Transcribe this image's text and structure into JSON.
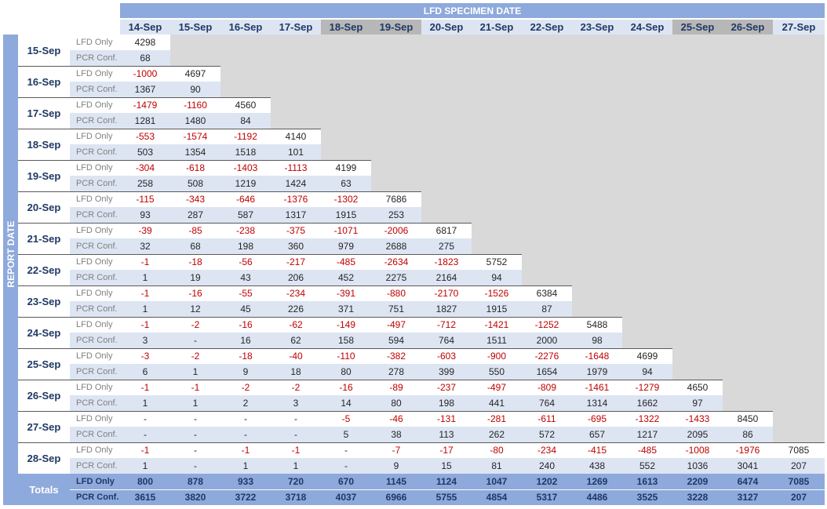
{
  "header": {
    "title": "LFD SPECIMEN DATE",
    "side_title": "REPORT DATE",
    "columns": [
      "14-Sep",
      "15-Sep",
      "16-Sep",
      "17-Sep",
      "18-Sep",
      "19-Sep",
      "20-Sep",
      "21-Sep",
      "22-Sep",
      "23-Sep",
      "24-Sep",
      "25-Sep",
      "26-Sep",
      "27-Sep"
    ],
    "shaded_columns": [
      4,
      5,
      11,
      12
    ]
  },
  "types": {
    "lfd": "LFD Only",
    "pcr": "PCR Conf."
  },
  "rows": [
    {
      "date": "15-Sep",
      "lfd": [
        "4298"
      ],
      "pcr": [
        "68"
      ]
    },
    {
      "date": "16-Sep",
      "lfd": [
        "-1000",
        "4697"
      ],
      "pcr": [
        "1367",
        "90"
      ]
    },
    {
      "date": "17-Sep",
      "lfd": [
        "-1479",
        "-1160",
        "4560"
      ],
      "pcr": [
        "1281",
        "1480",
        "84"
      ]
    },
    {
      "date": "18-Sep",
      "lfd": [
        "-553",
        "-1574",
        "-1192",
        "4140"
      ],
      "pcr": [
        "503",
        "1354",
        "1518",
        "101"
      ]
    },
    {
      "date": "19-Sep",
      "lfd": [
        "-304",
        "-618",
        "-1403",
        "-1113",
        "4199"
      ],
      "pcr": [
        "258",
        "508",
        "1219",
        "1424",
        "63"
      ]
    },
    {
      "date": "20-Sep",
      "lfd": [
        "-115",
        "-343",
        "-646",
        "-1376",
        "-1302",
        "7686"
      ],
      "pcr": [
        "93",
        "287",
        "587",
        "1317",
        "1915",
        "253"
      ]
    },
    {
      "date": "21-Sep",
      "lfd": [
        "-39",
        "-85",
        "-238",
        "-375",
        "-1071",
        "-2006",
        "6817"
      ],
      "pcr": [
        "32",
        "68",
        "198",
        "360",
        "979",
        "2688",
        "275"
      ]
    },
    {
      "date": "22-Sep",
      "lfd": [
        "-1",
        "-18",
        "-56",
        "-217",
        "-485",
        "-2634",
        "-1823",
        "5752"
      ],
      "pcr": [
        "1",
        "19",
        "43",
        "206",
        "452",
        "2275",
        "2164",
        "94"
      ]
    },
    {
      "date": "23-Sep",
      "lfd": [
        "-1",
        "-16",
        "-55",
        "-234",
        "-391",
        "-880",
        "-2170",
        "-1526",
        "6384"
      ],
      "pcr": [
        "1",
        "12",
        "45",
        "226",
        "371",
        "751",
        "1827",
        "1915",
        "87"
      ]
    },
    {
      "date": "24-Sep",
      "lfd": [
        "-1",
        "-2",
        "-16",
        "-62",
        "-149",
        "-497",
        "-712",
        "-1421",
        "-1252",
        "5488"
      ],
      "pcr": [
        "3",
        "-",
        "16",
        "62",
        "158",
        "594",
        "764",
        "1511",
        "2000",
        "98"
      ]
    },
    {
      "date": "25-Sep",
      "lfd": [
        "-3",
        "-2",
        "-18",
        "-40",
        "-110",
        "-382",
        "-603",
        "-900",
        "-2276",
        "-1648",
        "4699"
      ],
      "pcr": [
        "6",
        "1",
        "9",
        "18",
        "80",
        "278",
        "399",
        "550",
        "1654",
        "1979",
        "94"
      ]
    },
    {
      "date": "26-Sep",
      "lfd": [
        "-1",
        "-1",
        "-2",
        "-2",
        "-16",
        "-89",
        "-237",
        "-497",
        "-809",
        "-1461",
        "-1279",
        "4650"
      ],
      "pcr": [
        "1",
        "1",
        "2",
        "3",
        "14",
        "80",
        "198",
        "441",
        "764",
        "1314",
        "1662",
        "97"
      ]
    },
    {
      "date": "27-Sep",
      "lfd": [
        "-",
        "-",
        "-",
        "-",
        "-5",
        "-46",
        "-131",
        "-281",
        "-611",
        "-695",
        "-1322",
        "-1433",
        "8450"
      ],
      "pcr": [
        "-",
        "-",
        "-",
        "-",
        "5",
        "38",
        "113",
        "262",
        "572",
        "657",
        "1217",
        "2095",
        "86"
      ]
    },
    {
      "date": "28-Sep",
      "lfd": [
        "-1",
        "-",
        "-1",
        "-1",
        "-",
        "-7",
        "-17",
        "-80",
        "-234",
        "-415",
        "-485",
        "-1008",
        "-1976",
        "7085"
      ],
      "pcr": [
        "1",
        "-",
        "1",
        "1",
        "-",
        "9",
        "15",
        "81",
        "240",
        "438",
        "552",
        "1036",
        "3041",
        "207"
      ]
    }
  ],
  "totals": {
    "label": "Totals",
    "lfd": [
      "800",
      "878",
      "933",
      "720",
      "670",
      "1145",
      "1124",
      "1047",
      "1202",
      "1269",
      "1613",
      "2209",
      "6474",
      "7085"
    ],
    "pcr": [
      "3615",
      "3820",
      "3722",
      "3718",
      "4037",
      "6966",
      "5755",
      "4854",
      "5317",
      "4486",
      "3525",
      "3228",
      "3127",
      "207"
    ]
  },
  "colors": {
    "band": "#8ea9db",
    "header_text": "#1f3864",
    "negative": "#c00000",
    "gray_fill": "#d9d9d9",
    "alt_row": "#dde5f3"
  }
}
